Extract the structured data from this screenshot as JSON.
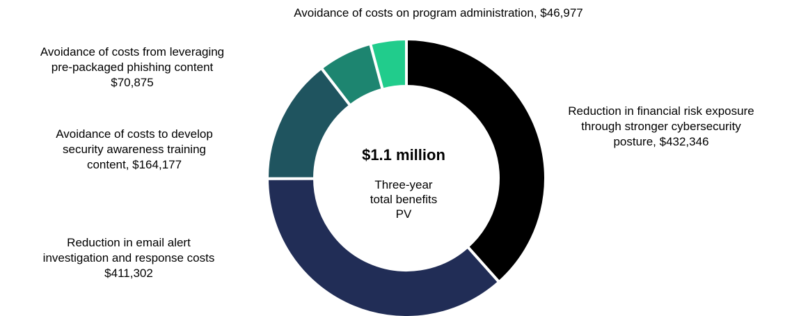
{
  "chart_data": {
    "type": "pie",
    "subtype": "donut",
    "categories": [
      "Reduction in financial risk exposure through stronger cybersecurity posture",
      "Reduction in email alert investigation and response costs",
      "Avoidance of costs to develop security awareness training content",
      "Avoidance of costs from leveraging pre-packaged phishing content",
      "Avoidance of costs on program administration"
    ],
    "values": [
      432346,
      411302,
      164177,
      70875,
      46977
    ],
    "colors": [
      "#000000",
      "#212d56",
      "#1f545f",
      "#1d8570",
      "#21cc8c"
    ],
    "center": {
      "value": "$1.1 million",
      "caption_lines": [
        "Three-year",
        "total benefits",
        "PV"
      ]
    },
    "labels": [
      {
        "lines": [
          "Reduction in financial risk exposure",
          "through stronger cybersecurity",
          "posture, $432,346"
        ]
      },
      {
        "lines": [
          "Reduction in email alert",
          "investigation and response costs",
          "$411,302"
        ]
      },
      {
        "lines": [
          "Avoidance of costs to develop",
          "security awareness training",
          "content, $164,177"
        ]
      },
      {
        "lines": [
          "Avoidance of costs from leveraging",
          "pre-packaged phishing content",
          "$70,875"
        ]
      },
      {
        "lines": [
          "Avoidance of costs on program administration, $46,977"
        ]
      }
    ],
    "legend": "none"
  }
}
